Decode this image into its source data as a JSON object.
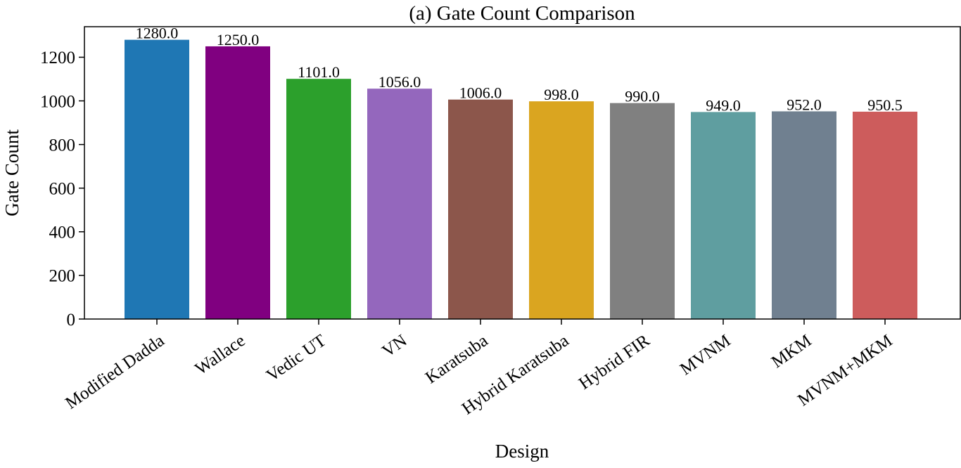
{
  "chart_data": {
    "type": "bar",
    "title": "(a) Gate Count Comparison",
    "xlabel": "Design",
    "ylabel": "Gate Count",
    "ylim": [
      0,
      1340
    ],
    "yticks": [
      0,
      200,
      400,
      600,
      800,
      1000,
      1200
    ],
    "grid": false,
    "categories": [
      "Modified Dadda",
      "Wallace",
      "Vedic UT",
      "VN",
      "Karatsuba",
      "Hybrid Karatsuba",
      "Hybrid FIR",
      "MVNM",
      "MKM",
      "MVNM+MKM"
    ],
    "values": [
      1280.0,
      1250.0,
      1101.0,
      1056.0,
      1006.0,
      998.0,
      990.0,
      949.0,
      952.0,
      950.5
    ],
    "value_labels": [
      "1280.0",
      "1250.0",
      "1101.0",
      "1056.0",
      "1006.0",
      "998.0",
      "990.0",
      "949.0",
      "952.0",
      "950.5"
    ],
    "colors": [
      "#1f77b4",
      "#800080",
      "#2ca02c",
      "#9467bd",
      "#8c564b",
      "#daa520",
      "#808080",
      "#5f9ea0",
      "#708090",
      "#cd5c5c"
    ]
  }
}
